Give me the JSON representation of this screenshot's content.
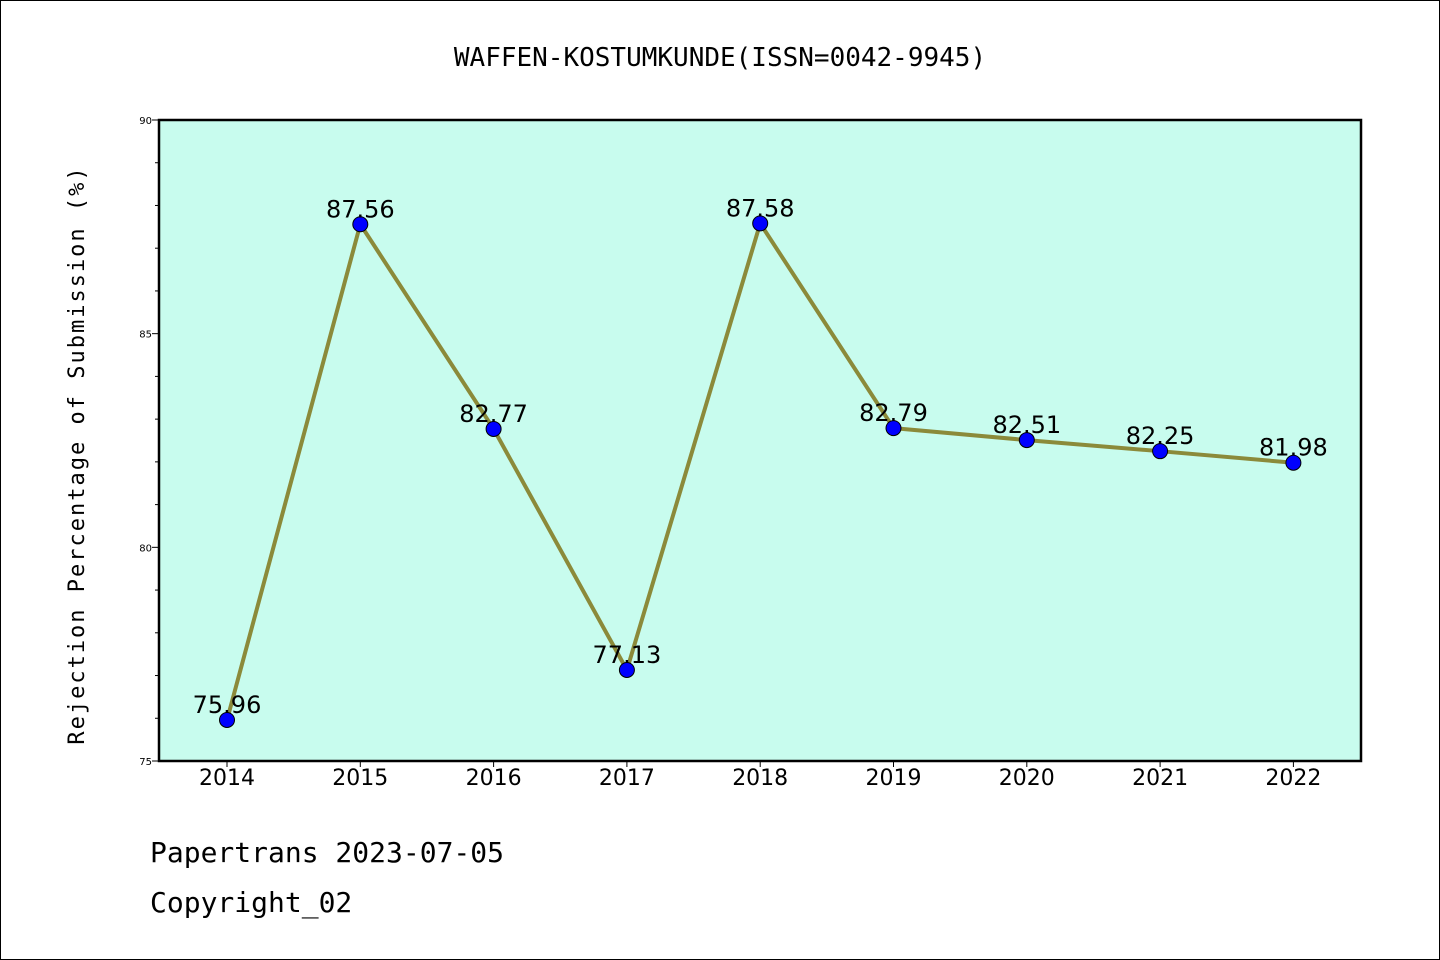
{
  "chart_data": {
    "type": "line",
    "title": "WAFFEN-KOSTUMKUNDE(ISSN=0042-9945)",
    "xlabel": "",
    "ylabel": "Rejection Percentage of Submission (%)",
    "categories": [
      "2014",
      "2015",
      "2016",
      "2017",
      "2018",
      "2019",
      "2020",
      "2021",
      "2022"
    ],
    "values": [
      75.96,
      87.56,
      82.77,
      77.13,
      87.58,
      82.79,
      82.51,
      82.25,
      81.98
    ],
    "data_labels": [
      "75.96",
      "87.56",
      "82.77",
      "77.13",
      "87.58",
      "82.79",
      "82.51",
      "82.25",
      "81.98"
    ],
    "ylim": [
      75,
      90
    ],
    "yticks": [
      "75",
      "80",
      "85",
      "90"
    ],
    "grid": false,
    "colors": {
      "plot_bg": "#c8fcee",
      "line": "#8b8a3a",
      "marker": "#0000ff"
    }
  },
  "footer": {
    "line1": "Papertrans 2023-07-05",
    "line2": "Copyright_02"
  }
}
